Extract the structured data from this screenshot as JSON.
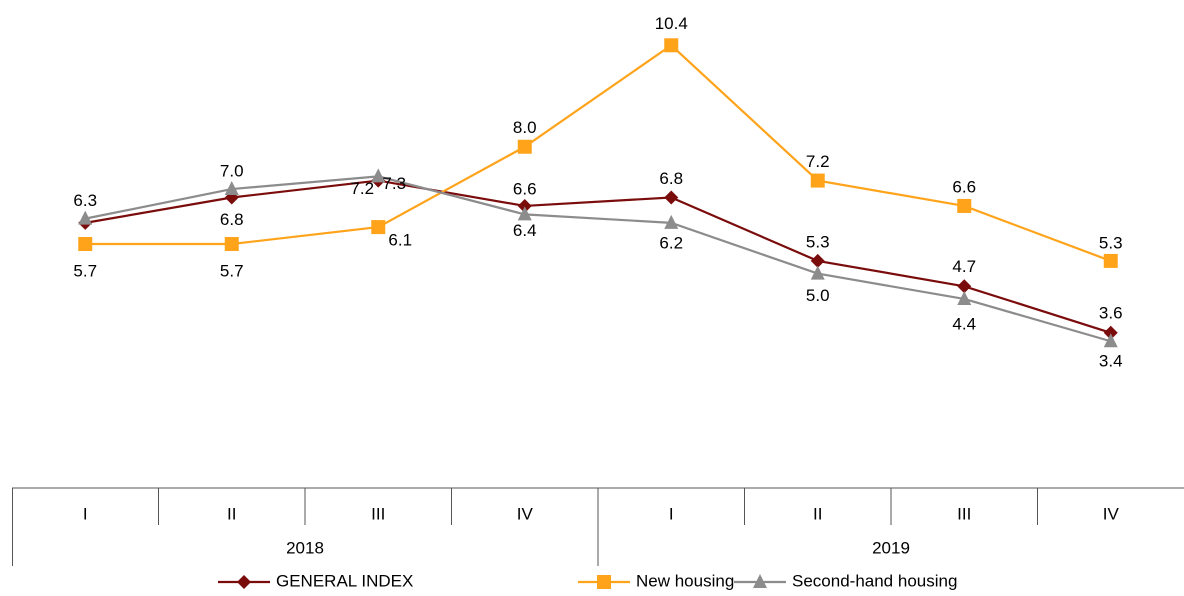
{
  "chart_data": {
    "type": "line",
    "categories": [
      "I",
      "II",
      "III",
      "IV",
      "I",
      "II",
      "III",
      "IV"
    ],
    "category_groups": [
      "2018",
      "2019"
    ],
    "series": [
      {
        "name": "GENERAL INDEX",
        "color": "#7b0c0c",
        "marker": "diamond",
        "values": [
          6.2,
          6.8,
          7.2,
          6.6,
          6.8,
          5.3,
          4.7,
          3.6
        ],
        "value_labels": [
          null,
          "6.8",
          "7.2",
          "6.6",
          "6.8",
          "5.3",
          "4.7",
          "3.6"
        ]
      },
      {
        "name": "New housing",
        "color": "#ffa31a",
        "marker": "square",
        "values": [
          5.7,
          5.7,
          6.1,
          8.0,
          10.4,
          7.2,
          6.6,
          5.3
        ],
        "value_labels": [
          "5.7",
          "5.7",
          "6.1",
          "8.0",
          "10.4",
          "7.2",
          "6.6",
          "5.3"
        ]
      },
      {
        "name": "Second-hand housing",
        "color": "#8c8c8c",
        "marker": "triangle",
        "values": [
          6.3,
          7.0,
          7.3,
          6.4,
          6.2,
          5.0,
          4.4,
          3.4
        ],
        "value_labels": [
          "6.3",
          "7.0",
          "7.3",
          "6.4",
          "6.2",
          "5.0",
          "4.4",
          "3.4"
        ]
      }
    ],
    "ylim": [
      0,
      11.4
    ],
    "grid": false,
    "legend": "bottom"
  }
}
